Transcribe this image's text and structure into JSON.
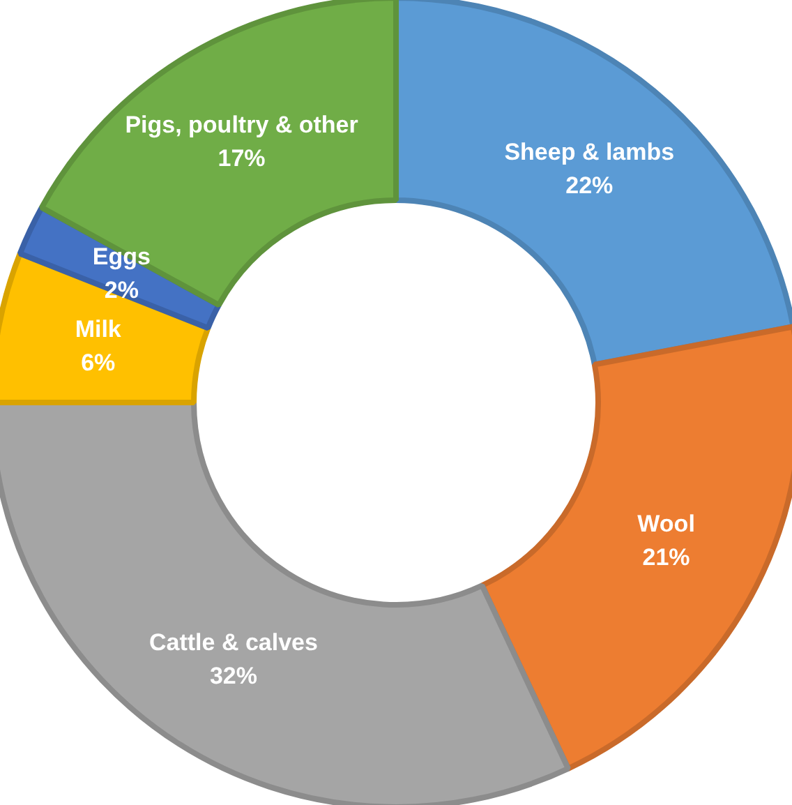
{
  "chart_data": {
    "type": "donut",
    "categories": [
      "Sheep & lambs",
      "Wool",
      "Cattle & calves",
      "Milk",
      "Eggs",
      "Pigs, poultry & other"
    ],
    "values": [
      22,
      21,
      32,
      6,
      2,
      17
    ],
    "colors": [
      "#5b9bd5",
      "#ed7d31",
      "#a5a5a5",
      "#ffc000",
      "#4472c4",
      "#70ad47"
    ],
    "value_labels": [
      "22%",
      "21%",
      "32%",
      "6%",
      "2%",
      "17%"
    ],
    "legend": false
  }
}
